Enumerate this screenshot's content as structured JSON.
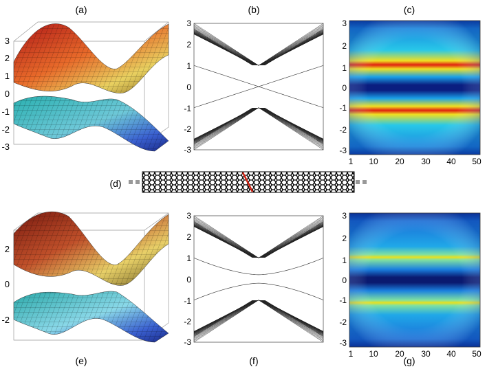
{
  "labels": {
    "a": "(a)",
    "b": "(b)",
    "c": "(c)",
    "d": "(d)",
    "e": "(e)",
    "f": "(f)",
    "g": "(g)"
  },
  "chart_data": [
    {
      "panel": "(a)",
      "type": "surface",
      "zlim": [
        -3,
        3
      ],
      "zticks": [
        "3",
        "2",
        "1",
        "0",
        "-1",
        "-2",
        "-3"
      ]
    },
    {
      "panel": "(b)",
      "type": "line",
      "ylim": [
        -3,
        3
      ],
      "yticks": [
        "3",
        "2",
        "1",
        "0",
        "-1",
        "-2",
        "-3"
      ],
      "gap_closes_at": 0,
      "dirac_points_y": [
        1,
        -1
      ]
    },
    {
      "panel": "(c)",
      "type": "heatmap",
      "xlim": [
        1,
        50
      ],
      "ylim": [
        -3,
        3
      ],
      "xticks": [
        "1",
        "10",
        "20",
        "30",
        "40",
        "50"
      ],
      "yticks": [
        "3",
        "2",
        "1",
        "0",
        "-1",
        "-2",
        "-3"
      ],
      "hot_rows_y": [
        1,
        -1
      ]
    },
    {
      "panel": "(e)",
      "type": "surface",
      "zlim": [
        -3,
        3
      ],
      "zticks": [
        "2",
        "0",
        "-2"
      ]
    },
    {
      "panel": "(f)",
      "type": "line",
      "ylim": [
        -3,
        3
      ],
      "yticks": [
        "3",
        "2",
        "1",
        "0",
        "-1",
        "-2",
        "-3"
      ],
      "gap_min": 0.2,
      "dirac_points_y": [
        1,
        -1
      ]
    },
    {
      "panel": "(g)",
      "type": "heatmap",
      "xlim": [
        1,
        50
      ],
      "ylim": [
        -3,
        3
      ],
      "xticks": [
        "1",
        "10",
        "20",
        "30",
        "40",
        "50"
      ],
      "yticks": [
        "3",
        "2",
        "1",
        "0",
        "-1",
        "-2",
        "-3"
      ],
      "hot_rows_y": [
        1,
        -1
      ]
    }
  ]
}
